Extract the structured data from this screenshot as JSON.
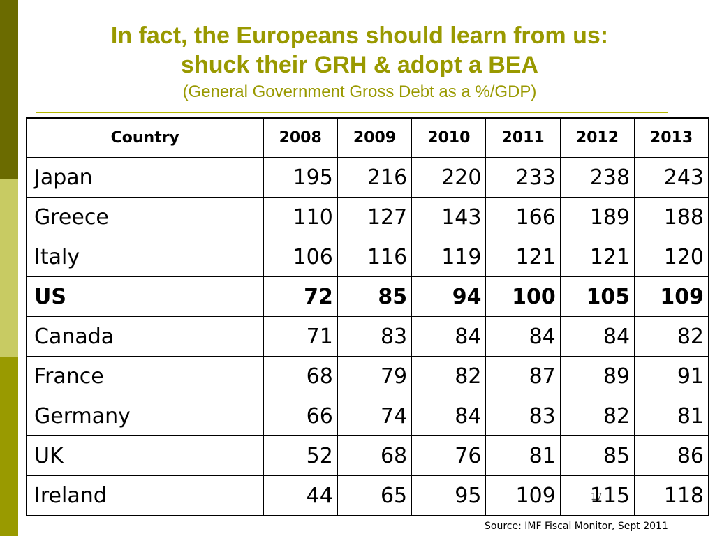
{
  "title": {
    "line1": "In fact, the Europeans should learn from us:",
    "line2": "shuck their GRH & adopt a BEA",
    "subtitle": "(General Government Gross Debt as a %/GDP)"
  },
  "table": {
    "headers": [
      "Country",
      "2008",
      "2009",
      "2010",
      "2011",
      "2012",
      "2013"
    ],
    "rows": [
      {
        "country": "Japan",
        "values": [
          "195",
          "216",
          "220",
          "233",
          "238",
          "243"
        ]
      },
      {
        "country": "Greece",
        "values": [
          "110",
          "127",
          "143",
          "166",
          "189",
          "188"
        ]
      },
      {
        "country": "Italy",
        "values": [
          "106",
          "116",
          "119",
          "121",
          "121",
          "120"
        ]
      },
      {
        "country": "US",
        "values": [
          "72",
          "85",
          "94",
          "100",
          "105",
          "109"
        ]
      },
      {
        "country": "Canada",
        "values": [
          "71",
          "83",
          "84",
          "84",
          "84",
          "82"
        ]
      },
      {
        "country": "France",
        "values": [
          "68",
          "79",
          "82",
          "87",
          "89",
          "91"
        ]
      },
      {
        "country": "Germany",
        "values": [
          "66",
          "74",
          "84",
          "83",
          "82",
          "81"
        ]
      },
      {
        "country": "UK",
        "values": [
          "52",
          "68",
          "76",
          "81",
          "85",
          "86"
        ]
      },
      {
        "country": "Ireland",
        "values": [
          "44",
          "65",
          "95",
          "109",
          "115",
          "118"
        ]
      }
    ]
  },
  "source": "Source: IMF Fiscal Monitor, Sept 2011",
  "slide_number": "17",
  "colors": {
    "title": "#999900",
    "accent_dark": "#6b6b00",
    "accent_light": "#c8cb63",
    "accent_mid": "#999a00"
  }
}
